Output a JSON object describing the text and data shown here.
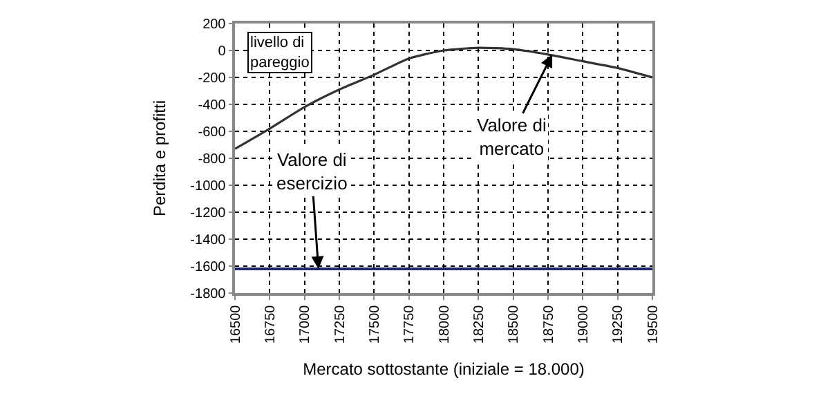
{
  "chart_data": {
    "type": "line",
    "xlabel": "Mercato sottostante (iniziale = 18.000)",
    "ylabel": "Perdita e profitti",
    "x": [
      16500,
      16750,
      17000,
      17250,
      17500,
      17750,
      18000,
      18250,
      18500,
      18750,
      19000,
      19250,
      19500
    ],
    "series": [
      {
        "color": "#333333",
        "values": [
          -730,
          -580,
          -420,
          -290,
          -180,
          -60,
          0,
          20,
          10,
          -30,
          -80,
          -130,
          -200
        ]
      }
    ],
    "ref_lines": [
      {
        "axis": "y",
        "value": -1620,
        "color": "#1f2a6b"
      }
    ],
    "annotations": [
      "livello di pareggio",
      {
        "text": "Valore di mercato",
        "x": 18780,
        "y": -30
      },
      {
        "text": "Valore di esercizio",
        "x": 17100,
        "y": -1620
      }
    ],
    "xlim": [
      16500,
      19500
    ],
    "xticks": [
      16500,
      16750,
      17000,
      17250,
      17500,
      17750,
      18000,
      18250,
      18500,
      18750,
      19000,
      19250,
      19500
    ],
    "ylim": [
      -1800,
      200
    ],
    "yticks": [
      -1800,
      -1600,
      -1400,
      -1200,
      -1000,
      -800,
      -600,
      -400,
      -200,
      0,
      200
    ],
    "grid": true,
    "marker": "none",
    "line_style": "solid"
  }
}
